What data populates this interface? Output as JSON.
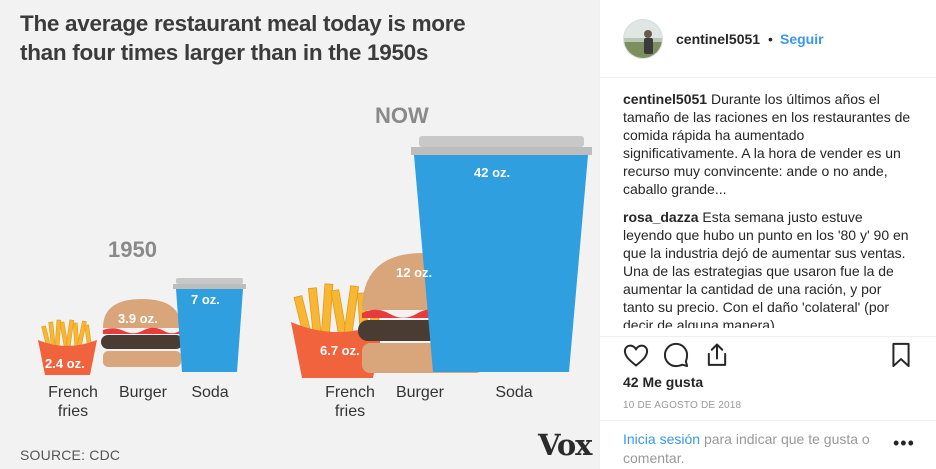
{
  "infographic": {
    "title": "The average restaurant meal today is more than four times larger than in the 1950s",
    "era_1950": "1950",
    "era_now": "NOW",
    "items_1950": [
      {
        "name": "French fries",
        "size": "2.4 oz."
      },
      {
        "name": "Burger",
        "size": "3.9 oz."
      },
      {
        "name": "Soda",
        "size": "7 oz."
      }
    ],
    "items_now": [
      {
        "name": "French fries",
        "size": "6.7 oz."
      },
      {
        "name": "Burger",
        "size": "12 oz."
      },
      {
        "name": "Soda",
        "size": "42 oz."
      }
    ],
    "caption_fries_line1": "French",
    "caption_fries_line2": "fries",
    "source": "SOURCE: CDC",
    "brand": "Vox",
    "colors": {
      "fries_box": "#f0633c",
      "fries": "#f7b733",
      "bun": "#d9a57a",
      "patty": "#4a3b33",
      "ketchup": "#e83b3b",
      "soda": "#2f9fe0",
      "lid": "#c8c8c8"
    }
  },
  "post": {
    "author": "centinel5051",
    "separator": "•",
    "follow_label": "Seguir",
    "comments": [
      {
        "user": "centinel5051",
        "text": "Durante los últimos años el tamaño de las raciones en los restaurantes de comida rápida ha aumentado significativamente. A la hora de vender es un recurso muy convincente: ande o no ande, caballo grande..."
      },
      {
        "user": "rosa_dazza",
        "text": "Esta semana justo estuve leyendo que hubo un punto en los '80 y' 90 en que la industria dejó de aumentar sus ventas. Una de las estrategias que usaron fue la de aumentar la cantidad de una ración, y por tanto su precio. Con el daño 'colateral' (por decir de alguna manera)"
      }
    ],
    "likes": "42 Me gusta",
    "date": "10 DE AGOSTO DE 2018",
    "login_link": "Inicia sesión",
    "login_rest": "para indicar que te gusta o comentar.",
    "more_label": "•••",
    "icons": [
      "heart-icon",
      "comment-icon",
      "share-icon",
      "bookmark-icon",
      "more-options-icon"
    ]
  }
}
